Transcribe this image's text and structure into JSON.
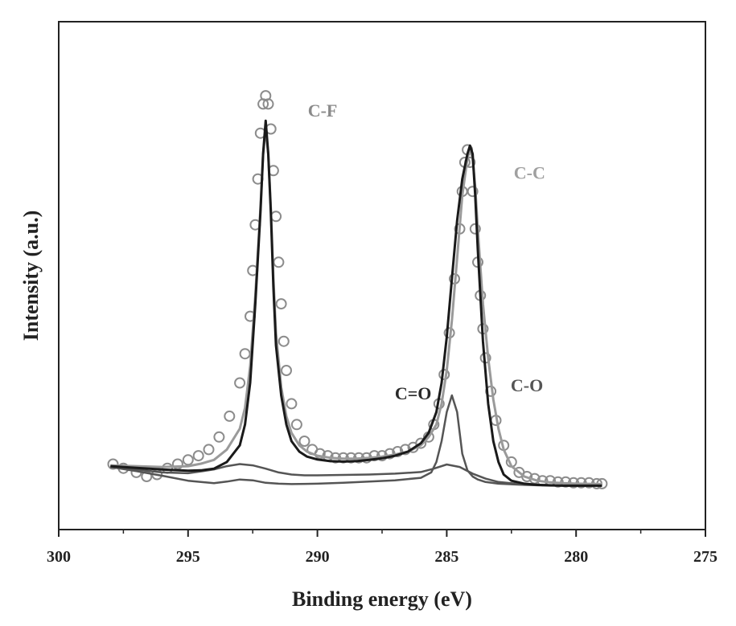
{
  "chart_data": {
    "type": "line",
    "xlabel": "Binding energy (eV)",
    "ylabel": "Intensity (a.u.)",
    "xlim": [
      300,
      275
    ],
    "ylim": [
      0,
      100
    ],
    "x_reversed": true,
    "xticks": [
      300,
      295,
      290,
      285,
      280,
      275
    ],
    "grid": false,
    "legend": "none",
    "colors": {
      "dark": "#1a1a1a",
      "medium": "#555555",
      "light": "#9a9a9a",
      "circles": "#8c8c8c"
    },
    "annotations": [
      {
        "text": "C-F",
        "x": 289.8,
        "y": 89,
        "color": "#8a8a8a"
      },
      {
        "text": "C-C",
        "x": 281.8,
        "y": 74,
        "color": "#a0a0a0"
      },
      {
        "text": "C=O",
        "x": 286.3,
        "y": 21,
        "color": "#2a2a2a"
      },
      {
        "text": "C-O",
        "x": 281.9,
        "y": 23,
        "color": "#555555"
      }
    ],
    "series": [
      {
        "style": "circles",
        "x": [
          297.9,
          297.5,
          297.0,
          296.6,
          296.2,
          295.8,
          295.4,
          295.0,
          294.6,
          294.2,
          293.8,
          293.4,
          293.0,
          292.8,
          292.6,
          292.5,
          292.4,
          292.3,
          292.2,
          292.1,
          292.0,
          291.9,
          291.8,
          291.7,
          291.6,
          291.5,
          291.4,
          291.3,
          291.2,
          291.0,
          290.8,
          290.5,
          290.2,
          289.9,
          289.6,
          289.3,
          289.0,
          288.7,
          288.4,
          288.1,
          287.8,
          287.5,
          287.2,
          286.9,
          286.6,
          286.3,
          286.0,
          285.7,
          285.5,
          285.3,
          285.1,
          284.9,
          284.7,
          284.5,
          284.4,
          284.3,
          284.2,
          284.1,
          284.0,
          283.9,
          283.8,
          283.7,
          283.6,
          283.5,
          283.3,
          283.1,
          282.8,
          282.5,
          282.2,
          281.9,
          281.6,
          281.3,
          281.0,
          280.7,
          280.4,
          280.1,
          279.8,
          279.5,
          279.2,
          279.0
        ],
        "y": [
          5.5,
          4.5,
          3.5,
          2.5,
          3.0,
          4.5,
          5.5,
          6.5,
          7.5,
          9,
          12,
          17,
          25,
          32,
          41,
          52,
          63,
          74,
          85,
          92,
          94,
          92,
          86,
          76,
          65,
          54,
          44,
          35,
          28,
          20,
          15,
          11,
          9,
          8,
          7.5,
          7,
          7,
          7,
          7,
          7,
          7.5,
          7.5,
          8,
          8.5,
          9,
          9.5,
          10.5,
          12,
          15,
          20,
          27,
          37,
          50,
          62,
          71,
          78,
          81,
          78,
          71,
          62,
          54,
          46,
          38,
          31,
          23,
          16,
          10,
          6,
          3.5,
          2.5,
          2,
          1.5,
          1.5,
          1.2,
          1.2,
          1,
          1,
          1,
          0.8,
          0.8
        ]
      },
      {
        "style": "envelope-light",
        "x": [
          298.0,
          297.0,
          296.0,
          295.0,
          294.5,
          294.0,
          293.5,
          293.0,
          292.8,
          292.6,
          292.4,
          292.2,
          292.1,
          292.0,
          291.9,
          291.8,
          291.7,
          291.6,
          291.4,
          291.2,
          291.0,
          290.7,
          290.4,
          290.0,
          289.5,
          289.0,
          288.5,
          288.0,
          287.5,
          287.0,
          286.5,
          286.0,
          285.7,
          285.4,
          285.2,
          285.0,
          284.8,
          284.6,
          284.4,
          284.2,
          284.1,
          284.0,
          283.9,
          283.8,
          283.6,
          283.4,
          283.2,
          283.0,
          282.8,
          282.5,
          282.0,
          281.5,
          281.0,
          280.5,
          280.0,
          279.0
        ],
        "y": [
          5.2,
          5.0,
          4.8,
          5.0,
          5.6,
          6.5,
          9,
          14,
          19,
          29,
          46,
          67,
          80,
          86,
          80,
          67,
          50,
          37,
          24,
          17,
          13,
          10,
          8.5,
          7.5,
          7,
          6.8,
          6.8,
          7,
          7.3,
          7.8,
          8.5,
          10,
          12,
          15,
          20,
          28,
          40,
          55,
          70,
          79,
          81,
          79,
          72,
          62,
          44,
          31,
          21,
          14,
          9,
          5,
          2.5,
          1.5,
          1.1,
          0.9,
          0.8,
          0.7
        ]
      },
      {
        "style": "dark",
        "x": [
          298.0,
          297.0,
          296.0,
          295.0,
          294.5,
          294.0,
          293.5,
          293.0,
          292.8,
          292.6,
          292.4,
          292.2,
          292.1,
          292.0,
          291.9,
          291.8,
          291.7,
          291.6,
          291.4,
          291.2,
          291.0,
          290.7,
          290.4,
          290.0,
          289.5,
          289.0,
          288.5,
          288.0,
          287.5,
          287.0,
          286.5,
          286.0,
          285.7,
          285.4,
          285.2,
          285.0,
          284.8,
          284.6,
          284.4,
          284.2,
          284.1,
          284.0,
          283.9,
          283.8,
          283.6,
          283.4,
          283.2,
          283.0,
          282.8,
          282.5,
          282.0,
          281.5,
          281.0,
          280.5,
          280.0,
          279.0
        ],
        "y": [
          5.0,
          4.6,
          4.2,
          3.9,
          4.0,
          4.4,
          6.0,
          10,
          15,
          25,
          44,
          66,
          80,
          88,
          80,
          66,
          48,
          34,
          22,
          15,
          11,
          8.5,
          7.3,
          6.6,
          6.2,
          6.1,
          6.2,
          6.5,
          6.9,
          7.5,
          8.5,
          10.5,
          13,
          18,
          25,
          36,
          50,
          64,
          74,
          80,
          82,
          80,
          70,
          57,
          35,
          20,
          11,
          6,
          3,
          1.5,
          0.8,
          0.5,
          0.4,
          0.3,
          0.3,
          0.3
        ]
      },
      {
        "style": "medium",
        "name": "C=O component",
        "x": [
          298.0,
          297.0,
          296.0,
          295.0,
          294.0,
          293.5,
          293.0,
          292.5,
          292.0,
          291.5,
          291.0,
          290.5,
          290.0,
          289.0,
          288.0,
          287.0,
          286.0,
          285.5,
          285.0,
          284.5,
          284.0,
          283.5,
          283.0,
          282.0,
          281.0,
          280.0,
          279.0
        ],
        "y": [
          5.0,
          4.2,
          3.5,
          3.3,
          4.2,
          5.0,
          5.5,
          5.2,
          4.4,
          3.5,
          3.0,
          2.8,
          2.8,
          2.9,
          3.0,
          3.2,
          3.6,
          4.4,
          5.4,
          4.8,
          3.2,
          2.0,
          1.2,
          0.6,
          0.4,
          0.3,
          0.3
        ]
      },
      {
        "style": "medium",
        "name": "C-O component",
        "x": [
          298.0,
          297.0,
          296.0,
          295.0,
          294.0,
          293.5,
          293.0,
          292.5,
          292.0,
          291.5,
          291.0,
          290.0,
          289.0,
          288.0,
          287.0,
          286.0,
          285.6,
          285.4,
          285.2,
          285.0,
          284.8,
          284.6,
          284.5,
          284.4,
          284.2,
          284.0,
          283.8,
          283.5,
          283.0,
          282.0,
          281.0,
          279.0
        ],
        "y": [
          4.8,
          3.8,
          2.7,
          1.5,
          0.9,
          1.3,
          1.8,
          1.6,
          1.0,
          0.8,
          0.7,
          0.8,
          1.0,
          1.3,
          1.6,
          2.2,
          3.5,
          6,
          11,
          18,
          22,
          18,
          13,
          8,
          4,
          2.5,
          1.8,
          1.2,
          0.8,
          0.5,
          0.3,
          0.3
        ]
      }
    ]
  }
}
